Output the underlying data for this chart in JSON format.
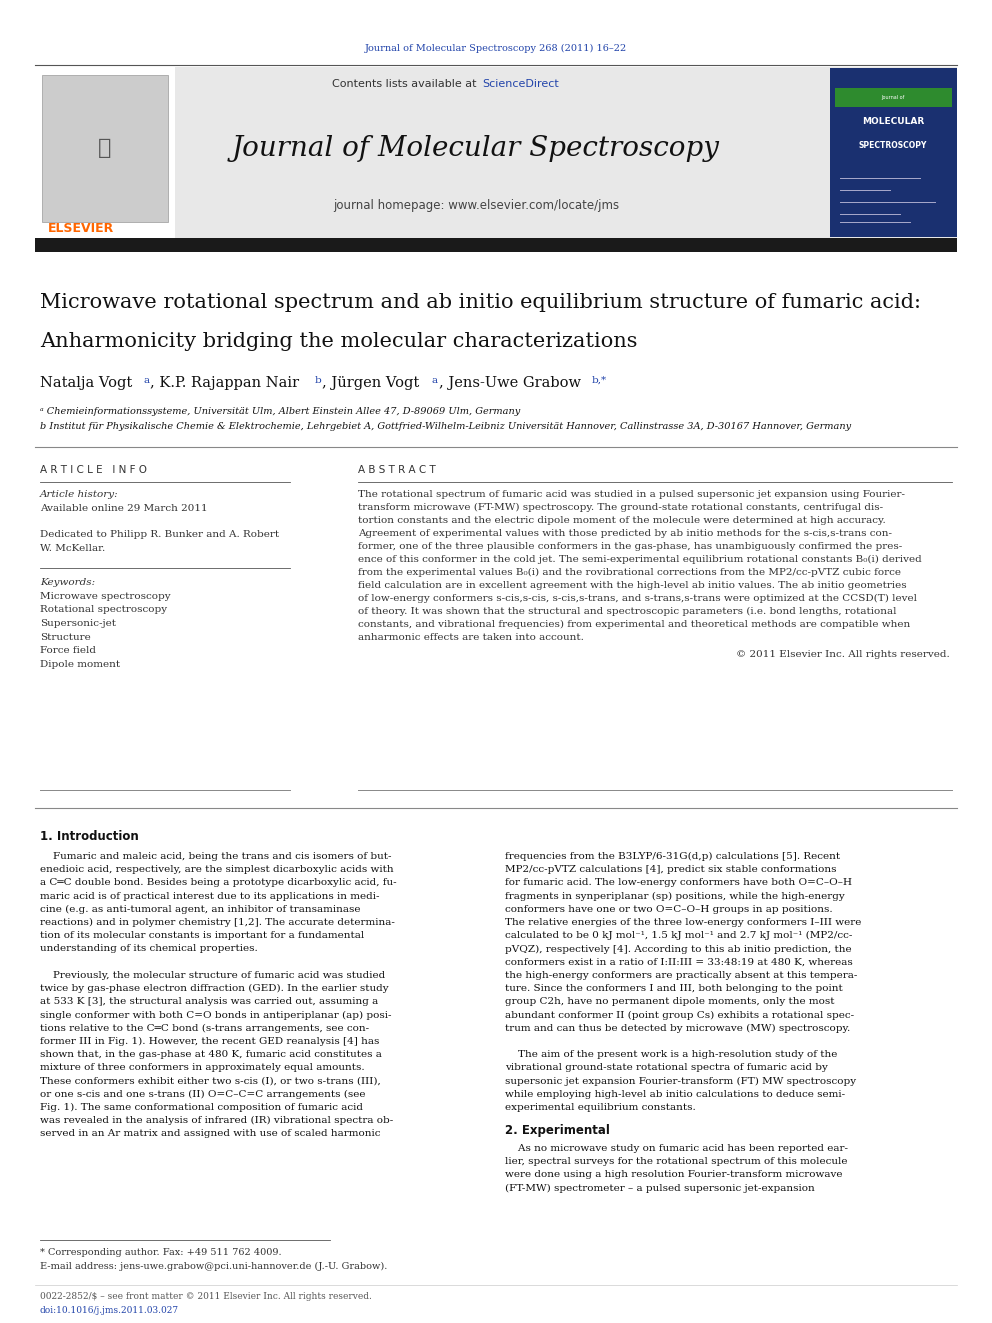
{
  "page_width": 9.92,
  "page_height": 13.23,
  "background_color": "#ffffff",
  "journal_ref_text": "Journal of Molecular Spectroscopy 268 (2011) 16–22",
  "journal_ref_color": "#2244aa",
  "header_bg_color": "#e8e8e8",
  "journal_title": "Journal of Molecular Spectroscopy",
  "contents_text": "Contents lists available at ",
  "sciencedirect_text": "ScienceDirect",
  "homepage_text": "journal homepage: www.elsevier.com/locate/jms",
  "elsevier_color": "#FF6600",
  "paper_title_line1": "Microwave rotational spectrum and ab initio equilibrium structure of fumaric acid:",
  "paper_title_line2": "Anharmonicity bridging the molecular characterizations",
  "affil_a": "ᵃ Chemieinformationssysteme, Universität Ulm, Albert Einstein Allee 47, D-89069 Ulm, Germany",
  "affil_b": "b Institut für Physikalische Chemie & Elektrochemie, Lehrgebiet A, Gottfried-Wilhelm-Leibniz Universität Hannover, Callinstrasse 3A, D-30167 Hannover, Germany",
  "article_info_header": "A R T I C L E   I N F O",
  "abstract_header": "A B S T R A C T",
  "article_history_label": "Article history:",
  "article_history_date": "Available online 29 March 2011",
  "keywords_label": "Keywords:",
  "keywords": [
    "Microwave spectroscopy",
    "Rotational spectroscopy",
    "Supersonic-jet",
    "Structure",
    "Force field",
    "Dipole moment"
  ],
  "abstract_lines": [
    "The rotational spectrum of fumaric acid was studied in a pulsed supersonic jet expansion using Fourier-",
    "transform microwave (FT-MW) spectroscopy. The ground-state rotational constants, centrifugal dis-",
    "tortion constants and the electric dipole moment of the molecule were determined at high accuracy.",
    "Agreement of experimental values with those predicted by ab initio methods for the s-cis,s-trans con-",
    "former, one of the three plausible conformers in the gas-phase, has unambiguously confirmed the pres-",
    "ence of this conformer in the cold jet. The semi-experimental equilibrium rotational constants B₀(i) derived",
    "from the experimental values B₀(i) and the rovibrational corrections from the MP2/cc-pVTZ cubic force",
    "field calculation are in excellent agreement with the high-level ab initio values. The ab initio geometries",
    "of low-energy conformers s-cis,s-cis, s-cis,s-trans, and s-trans,s-trans were optimized at the CCSD(T) level",
    "of theory. It was shown that the structural and spectroscopic parameters (i.e. bond lengths, rotational",
    "constants, and vibrational frequencies) from experimental and theoretical methods are compatible when",
    "anharmonic effects are taken into account."
  ],
  "copyright_text": "© 2011 Elsevier Inc. All rights reserved.",
  "intro_header": "1. Introduction",
  "intro_col1_lines": [
    "    Fumaric and maleic acid, being the trans and cis isomers of but-",
    "enedioic acid, respectively, are the simplest dicarboxylic acids with",
    "a C═C double bond. Besides being a prototype dicarboxylic acid, fu-",
    "maric acid is of practical interest due to its applications in medi-",
    "cine (e.g. as anti-tumoral agent, an inhibitor of transaminase",
    "reactions) and in polymer chemistry [1,2]. The accurate determina-",
    "tion of its molecular constants is important for a fundamental",
    "understanding of its chemical properties.",
    "",
    "    Previously, the molecular structure of fumaric acid was studied",
    "twice by gas-phase electron diffraction (GED). In the earlier study",
    "at 533 K [3], the structural analysis was carried out, assuming a",
    "single conformer with both C=O bonds in antiperiplanar (ap) posi-",
    "tions relative to the C═C bond (s-trans arrangements, see con-",
    "former III in Fig. 1). However, the recent GED reanalysis [4] has",
    "shown that, in the gas-phase at 480 K, fumaric acid constitutes a",
    "mixture of three conformers in approximately equal amounts.",
    "These conformers exhibit either two s-cis (I), or two s-trans (III),",
    "or one s-cis and one s-trans (II) O=C–C=C arrangements (see",
    "Fig. 1). The same conformational composition of fumaric acid",
    "was revealed in the analysis of infrared (IR) vibrational spectra ob-",
    "served in an Ar matrix and assigned with use of scaled harmonic"
  ],
  "intro_col2_lines": [
    "frequencies from the B3LYP/6-31G(d,p) calculations [5]. Recent",
    "MP2/cc-pVTZ calculations [4], predict six stable conformations",
    "for fumaric acid. The low-energy conformers have both O=C–O–H",
    "fragments in synperiplanar (sp) positions, while the high-energy",
    "conformers have one or two O=C–O–H groups in ap positions.",
    "The relative energies of the three low-energy conformers I–III were",
    "calculated to be 0 kJ mol⁻¹, 1.5 kJ mol⁻¹ and 2.7 kJ mol⁻¹ (MP2/cc-",
    "pVQZ), respectively [4]. According to this ab initio prediction, the",
    "conformers exist in a ratio of I:II:III = 33:48:19 at 480 K, whereas",
    "the high-energy conformers are practically absent at this tempera-",
    "ture. Since the conformers I and III, both belonging to the point",
    "group C2h, have no permanent dipole moments, only the most",
    "abundant conformer II (point group Cs) exhibits a rotational spec-",
    "trum and can thus be detected by microwave (MW) spectroscopy.",
    "",
    "    The aim of the present work is a high-resolution study of the",
    "vibrational ground-state rotational spectra of fumaric acid by",
    "supersonic jet expansion Fourier-transform (FT) MW spectroscopy",
    "while employing high-level ab initio calculations to deduce semi-",
    "experimental equilibrium constants."
  ],
  "experimental_header": "2. Experimental",
  "experimental_lines": [
    "    As no microwave study on fumaric acid has been reported ear-",
    "lier, spectral surveys for the rotational spectrum of this molecule",
    "were done using a high resolution Fourier-transform microwave",
    "(FT-MW) spectrometer – a pulsed supersonic jet-expansion"
  ],
  "footnote_star": "* Corresponding author. Fax: +49 511 762 4009.",
  "footnote_email": "E-mail address: jens-uwe.grabow@pci.uni-hannover.de (J.-U. Grabow).",
  "footer_issn": "0022-2852/$ – see front matter © 2011 Elsevier Inc. All rights reserved.",
  "footer_doi": "doi:10.1016/j.jms.2011.03.027",
  "link_color": "#2244aa",
  "text_color": "#111111",
  "separator_color": "#888888",
  "dark_bar_color": "#1a1a1a"
}
